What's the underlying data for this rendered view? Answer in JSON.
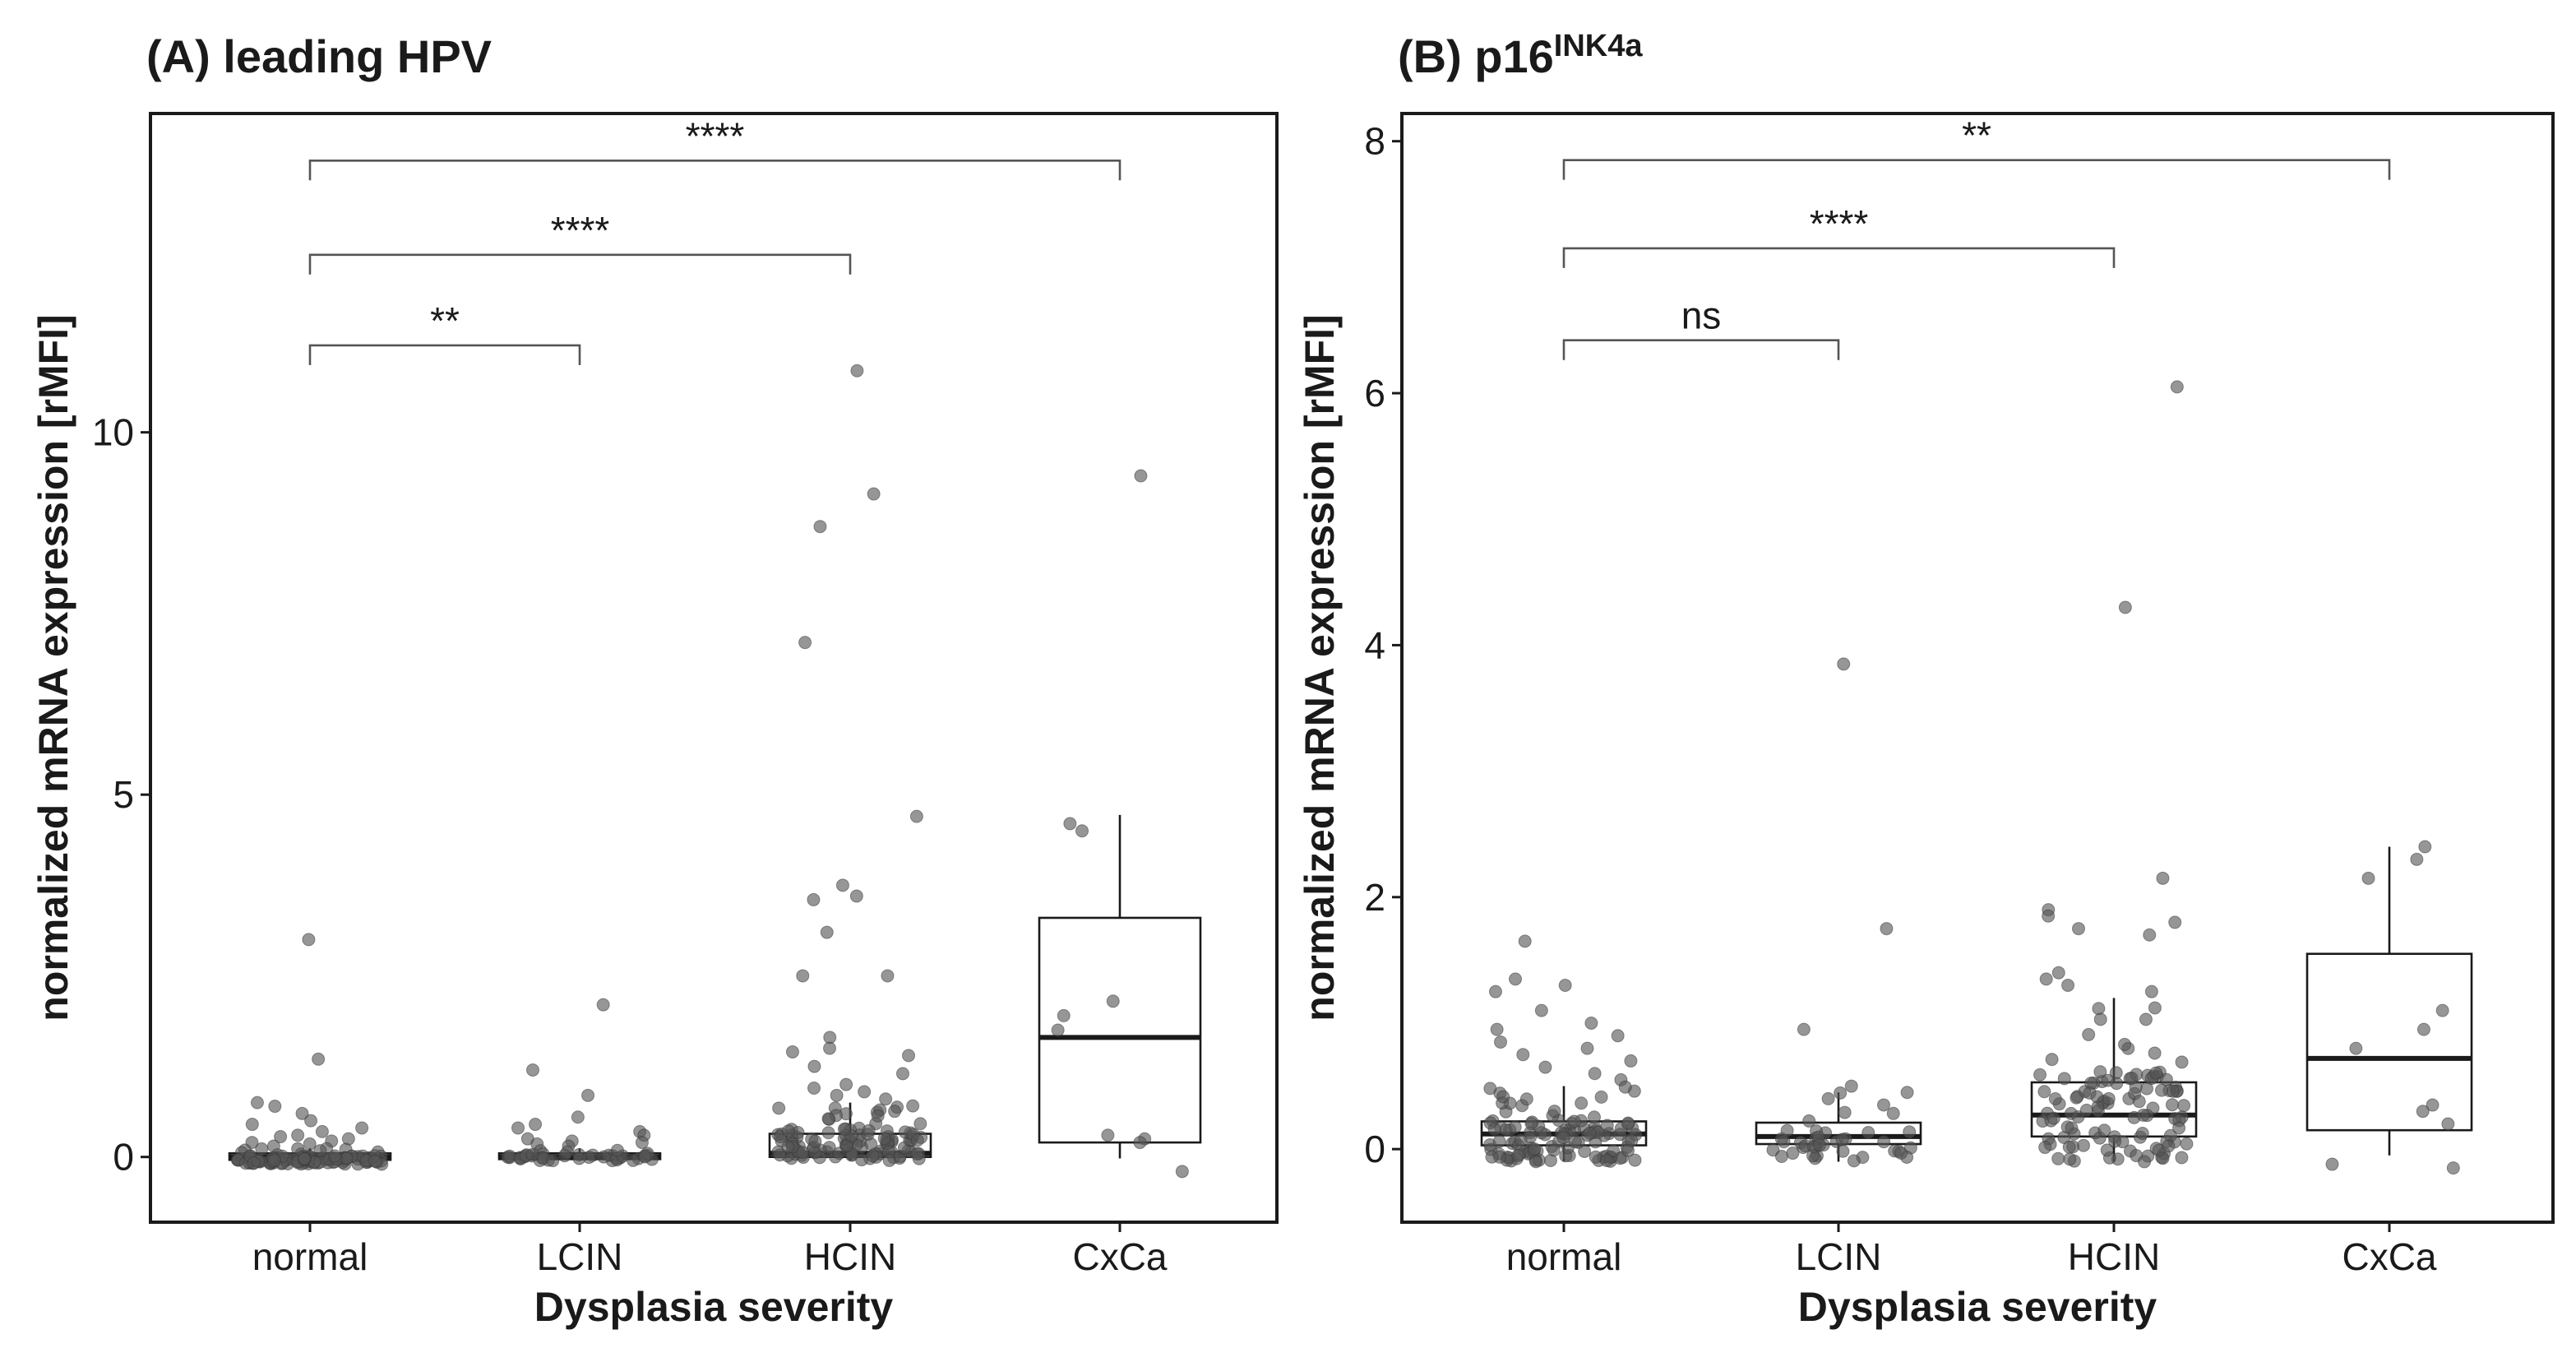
{
  "chart_data": [
    {
      "type": "box",
      "title": "(A) leading HPV",
      "xlabel": "Dysplasia severity",
      "ylabel": "normalized mRNA expression [rMFI]",
      "categories": [
        "normal",
        "LCIN",
        "HCIN",
        "CxCa"
      ],
      "ylim": [
        -0.9,
        14.4
      ],
      "yticks": [
        0,
        5,
        10
      ],
      "boxes": [
        {
          "q1": -0.04,
          "median": 0.0,
          "q3": 0.05,
          "whisker_low": -0.1,
          "whisker_high": 0.12
        },
        {
          "q1": -0.03,
          "median": 0.0,
          "q3": 0.05,
          "whisker_low": -0.05,
          "whisker_high": 0.12
        },
        {
          "q1": 0.0,
          "median": 0.05,
          "q3": 0.32,
          "whisker_low": -0.05,
          "whisker_high": 0.75
        },
        {
          "q1": 0.2,
          "median": 1.65,
          "q3": 3.3,
          "whisker_low": -0.02,
          "whisker_high": 4.72
        }
      ],
      "outliers": [
        {
          "group": "normal",
          "values": [
            3.0,
            1.35,
            0.75,
            0.7,
            0.6,
            0.5,
            0.45,
            0.4,
            0.35,
            0.3,
            0.28,
            0.25,
            0.22,
            0.2,
            0.18,
            0.15
          ]
        },
        {
          "group": "LCIN",
          "values": [
            2.1,
            1.2,
            0.85,
            0.55,
            0.45,
            0.4,
            0.35,
            0.3,
            0.25,
            0.22,
            0.2,
            0.18,
            0.15
          ]
        },
        {
          "group": "HCIN",
          "values": [
            10.85,
            9.15,
            8.7,
            7.1,
            4.7,
            3.75,
            3.55,
            3.6,
            3.1,
            2.5,
            2.5,
            1.65,
            1.5,
            1.45,
            1.4,
            1.25,
            1.15,
            1.0,
            0.95,
            0.9,
            0.85,
            0.8
          ]
        },
        {
          "group": "CxCa",
          "values": [
            9.4,
            4.6,
            4.5,
            2.15,
            1.95,
            1.75,
            0.3,
            0.25,
            0.2,
            -0.2
          ]
        }
      ],
      "comparisons": [
        {
          "from": "normal",
          "to": "CxCa",
          "label": "****",
          "y": 13.75
        },
        {
          "from": "normal",
          "to": "HCIN",
          "label": "****",
          "y": 12.45
        },
        {
          "from": "normal",
          "to": "LCIN",
          "label": "**",
          "y": 11.2
        }
      ]
    },
    {
      "type": "box",
      "title_main": "(B) p16",
      "title_sup": "INK4a",
      "xlabel": "Dysplasia severity",
      "ylabel": "normalized mRNA expression [rMFI]",
      "categories": [
        "normal",
        "LCIN",
        "HCIN",
        "CxCa"
      ],
      "ylim": [
        -0.58,
        8.22
      ],
      "yticks": [
        0,
        2,
        4,
        6,
        8
      ],
      "boxes": [
        {
          "q1": 0.03,
          "median": 0.12,
          "q3": 0.22,
          "whisker_low": -0.1,
          "whisker_high": 0.5
        },
        {
          "q1": 0.04,
          "median": 0.1,
          "q3": 0.21,
          "whisker_low": -0.1,
          "whisker_high": 0.45
        },
        {
          "q1": 0.1,
          "median": 0.27,
          "q3": 0.53,
          "whisker_low": -0.1,
          "whisker_high": 1.2
        },
        {
          "q1": 0.15,
          "median": 0.72,
          "q3": 1.55,
          "whisker_low": -0.05,
          "whisker_high": 2.4
        }
      ],
      "outliers": [
        {
          "group": "normal",
          "values": [
            1.65,
            1.35,
            1.3,
            1.25,
            1.1,
            1.0,
            0.95,
            0.9,
            0.85,
            0.8,
            0.75,
            0.7,
            0.65,
            0.6,
            0.55
          ]
        },
        {
          "group": "LCIN",
          "values": [
            3.85,
            1.75,
            0.95,
            0.5,
            0.45,
            0.4
          ]
        },
        {
          "group": "HCIN",
          "values": [
            6.05,
            4.3,
            2.15,
            1.9,
            1.85,
            1.8,
            1.75,
            1.7,
            1.4,
            1.35,
            1.3,
            1.25
          ]
        },
        {
          "group": "CxCa",
          "values": [
            2.4,
            2.3,
            2.15,
            1.1,
            0.95,
            0.8,
            0.35,
            0.3,
            0.2,
            -0.15,
            -0.12
          ]
        }
      ],
      "comparisons": [
        {
          "from": "normal",
          "to": "CxCa",
          "label": "**",
          "y": 7.85
        },
        {
          "from": "normal",
          "to": "HCIN",
          "label": "****",
          "y": 7.15
        },
        {
          "from": "normal",
          "to": "LCIN",
          "label": "ns",
          "y": 6.42
        }
      ]
    }
  ]
}
